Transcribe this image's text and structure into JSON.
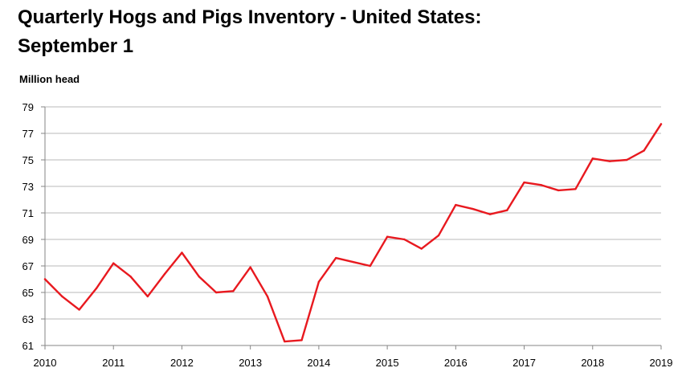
{
  "chart_data": {
    "type": "line",
    "title_line1": "Quarterly Hogs and Pigs Inventory - United States:",
    "title_line2": "September 1",
    "ylabel": "Million head",
    "xlabel": "",
    "ylim": [
      61,
      79
    ],
    "yticks": [
      "61",
      "63",
      "65",
      "67",
      "69",
      "71",
      "73",
      "75",
      "77",
      "79"
    ],
    "xticks": [
      "2010",
      "2011",
      "2012",
      "2013",
      "2014",
      "2015",
      "2016",
      "2017",
      "2018",
      "2019"
    ],
    "xlim": [
      2010,
      2019
    ],
    "grid": true,
    "series": [
      {
        "color": "#e8191f",
        "x": [
          2010,
          2010.25,
          2010.5,
          2010.75,
          2011,
          2011.25,
          2011.5,
          2011.75,
          2012,
          2012.25,
          2012.5,
          2012.75,
          2013,
          2013.25,
          2013.5,
          2013.75,
          2014,
          2014.25,
          2014.5,
          2014.75,
          2015,
          2015.25,
          2015.5,
          2015.75,
          2016,
          2016.25,
          2016.5,
          2016.75,
          2017,
          2017.25,
          2017.5,
          2017.75,
          2018,
          2018.25,
          2018.5,
          2018.75,
          2019
        ],
        "values": [
          66.0,
          64.7,
          63.7,
          65.3,
          67.2,
          66.2,
          64.7,
          66.4,
          68.0,
          66.2,
          65.0,
          65.1,
          66.9,
          64.7,
          61.3,
          61.4,
          65.8,
          67.6,
          67.3,
          67.0,
          69.2,
          69.0,
          68.3,
          69.3,
          71.6,
          71.3,
          70.9,
          71.2,
          73.3,
          73.1,
          72.7,
          72.8,
          75.1,
          74.9,
          75.0,
          75.7,
          77.7
        ]
      }
    ]
  }
}
